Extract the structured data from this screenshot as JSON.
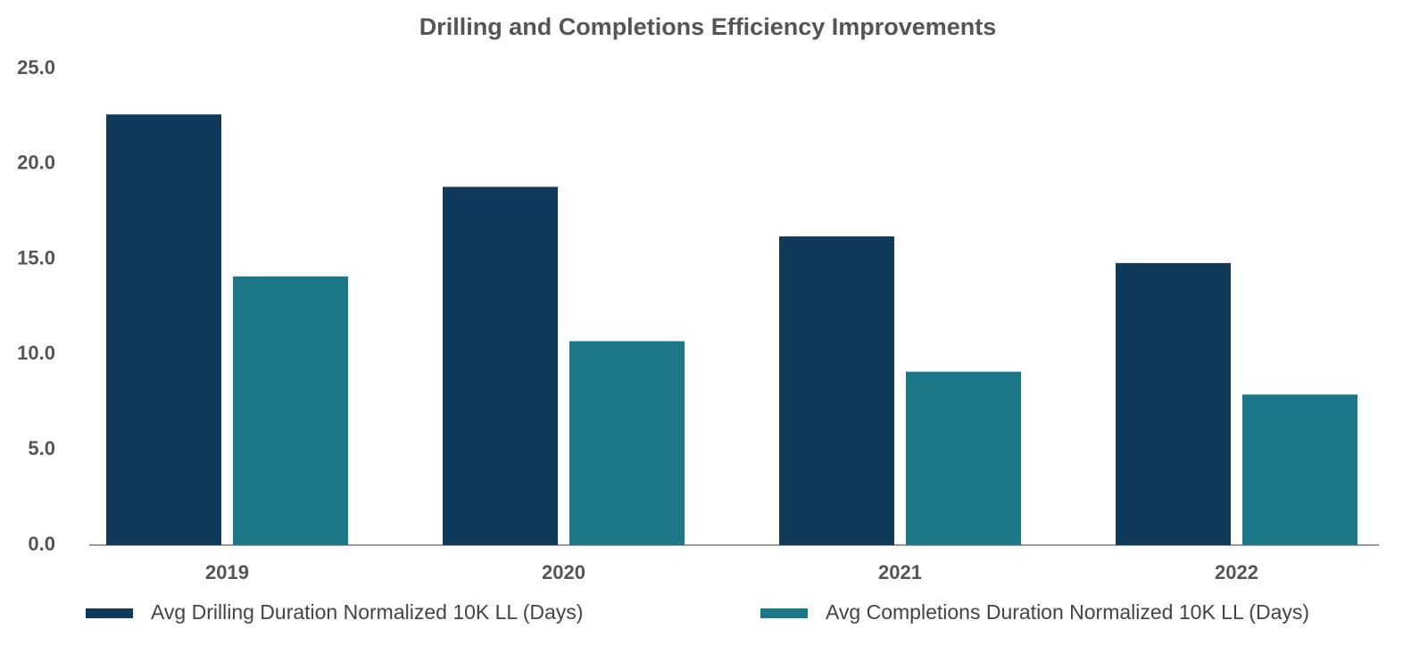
{
  "chart_data": {
    "type": "bar",
    "title": "Drilling and Completions Efficiency Improvements",
    "categories": [
      "2019",
      "2020",
      "2021",
      "2022"
    ],
    "series": [
      {
        "name": "Avg Drilling Duration Normalized 10K LL (Days)",
        "color": "#0f3a5c",
        "values": [
          22.6,
          18.8,
          16.2,
          14.8
        ]
      },
      {
        "name": "Avg Completions Duration Normalized 10K LL (Days)",
        "color": "#1c7889",
        "values": [
          14.1,
          10.7,
          9.1,
          7.9
        ]
      }
    ],
    "ylim": [
      0,
      25
    ],
    "yticks": [
      {
        "value": 0,
        "label": "0.0"
      },
      {
        "value": 5,
        "label": "5.0"
      },
      {
        "value": 10,
        "label": "10.0"
      },
      {
        "value": 15,
        "label": "15.0"
      },
      {
        "value": 20,
        "label": "20.0"
      },
      {
        "value": 25,
        "label": "25.0"
      }
    ],
    "grid": false,
    "legend": "bottom"
  }
}
